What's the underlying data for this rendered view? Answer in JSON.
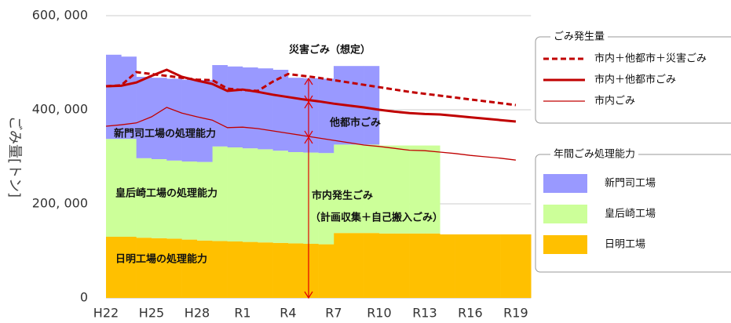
{
  "chart_data": {
    "type": "combo",
    "y_label": "ごみ量[トン]",
    "categories": [
      "H22",
      null,
      null,
      "H25",
      null,
      null,
      "H28",
      null,
      null,
      "R1",
      null,
      null,
      "R4",
      null,
      null,
      "R7",
      null,
      null,
      "R10",
      null,
      null,
      "R13",
      null,
      null,
      "R16",
      null,
      null,
      "R19"
    ],
    "ylim": [
      0,
      600000
    ],
    "yticks": [
      0,
      {
        "value": 200000,
        "label": "200, 000"
      },
      {
        "value": 400000,
        "label": "400, 000"
      },
      {
        "value": 600000,
        "label": "600, 000"
      }
    ],
    "grid": true,
    "legend_titles": {
      "line": "ごみ発生量",
      "area": "年間ごみ処理能力"
    },
    "series": [
      {
        "name": "日明工場",
        "type": "area",
        "color": "#ffc000",
        "values": [
          130000,
          130000,
          128000,
          127000,
          126000,
          124000,
          122000,
          121000,
          120000,
          119000,
          118000,
          117000,
          116000,
          115000,
          114000,
          138000,
          138000,
          138000,
          137000,
          137000,
          137000,
          137000,
          135000,
          135000,
          135000,
          135000,
          135000,
          135000
        ]
      },
      {
        "name": "皇后崎工場",
        "type": "area",
        "color": "#ccff99",
        "values": [
          208000,
          208000,
          169000,
          168000,
          166000,
          166000,
          167000,
          201000,
          200000,
          199000,
          198000,
          196000,
          194000,
          194000,
          194000,
          188000,
          188000,
          188000,
          187000,
          187000,
          187000,
          187000,
          null,
          null,
          null,
          null,
          null,
          null
        ]
      },
      {
        "name": "新門司工場",
        "type": "area",
        "color": "#9999ff",
        "values": [
          179000,
          175000,
          173000,
          173000,
          174000,
          174000,
          174000,
          173000,
          172000,
          172000,
          172000,
          172000,
          158000,
          158000,
          158000,
          167000,
          167000,
          167000,
          null,
          null,
          null,
          null,
          null,
          null,
          null,
          null,
          null,
          null
        ]
      },
      {
        "name": "市内＋他都市＋災害ごみ",
        "type": "line",
        "style": "dashed",
        "color": "#c00000",
        "values": [
          450000,
          452000,
          480000,
          476000,
          472000,
          468000,
          464000,
          463000,
          445000,
          442000,
          440000,
          460000,
          476000,
          472000,
          468000,
          463000,
          458000,
          453000,
          448000,
          443000,
          438000,
          434000,
          430000,
          426000,
          422000,
          418000,
          414000,
          410000
        ]
      },
      {
        "name": "市内＋他都市ごみ",
        "type": "line",
        "style": "thick",
        "color": "#c00000",
        "values": [
          450000,
          451000,
          458000,
          472000,
          485000,
          470000,
          462000,
          455000,
          440000,
          443000,
          438000,
          432000,
          427000,
          422000,
          418000,
          413000,
          409000,
          405000,
          400000,
          396000,
          393000,
          391000,
          390000,
          387000,
          384000,
          381000,
          378000,
          375000
        ]
      },
      {
        "name": "市内ごみ",
        "type": "line",
        "style": "thin",
        "color": "#c00000",
        "values": [
          365000,
          368000,
          372000,
          385000,
          405000,
          393000,
          385000,
          378000,
          362000,
          363000,
          360000,
          355000,
          350000,
          345000,
          340000,
          335000,
          330000,
          325000,
          322000,
          318000,
          314000,
          313000,
          310000,
          307000,
          303000,
          300000,
          297000,
          293000
        ]
      }
    ],
    "annotations": [
      "災害ごみ（想定）",
      "他都市ごみ",
      "新門司工場の処理能力",
      "皇后崎工場の処理能力",
      "市内発生ごみ",
      "（計画収集＋自己搬入ごみ）",
      "日明工場の処理能力"
    ]
  }
}
